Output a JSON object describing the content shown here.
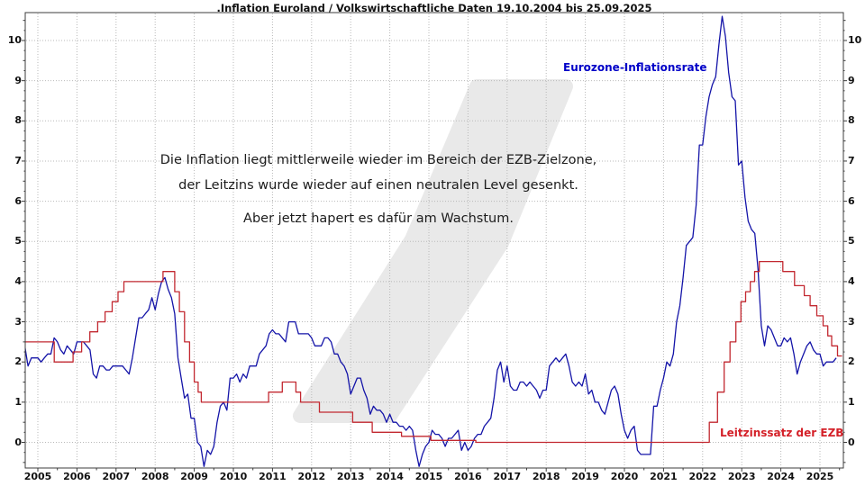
{
  "title": ".Inflation Euroland / Volkswirtschaftliche Daten 19.10.2004 bis 25.09.2025",
  "annotation": {
    "line1": "Die Inflation liegt mittlerweile wieder im Bereich der EZB-Zielzone,",
    "line2": "der Leitzins wurde wieder auf einen neutralen Level gesenkt.",
    "line3": "Aber jetzt hapert es dafür am Wachstum."
  },
  "legend": {
    "inflation": "Eurozone-Inflationsrate",
    "leitzins": "Leitzinssatz der EZB"
  },
  "colors": {
    "inflation_line": "#1414a8",
    "leitzins_line": "#c22830",
    "inflation_label": "#0000c8",
    "leitzins_label": "#d42028",
    "grid": "#b9b9b9",
    "axis": "#3c3c3c",
    "watermark": "#e9e9e9",
    "text": "#1c1c1c"
  },
  "chart_data": {
    "type": "line",
    "title": ".Inflation Euroland / Volkswirtschaftliche Daten 19.10.2004 bis 25.09.2025",
    "xlabel": "",
    "ylabel": "",
    "grid": "dotted",
    "legend_position": "inline-annotations",
    "x_tick_labels": [
      "2005",
      "2006",
      "2007",
      "2008",
      "2009",
      "2010",
      "2011",
      "2012",
      "2013",
      "2014",
      "2015",
      "2016",
      "2017",
      "2018",
      "2019",
      "2020",
      "2021",
      "2022",
      "2023",
      "2024",
      "2025"
    ],
    "y_tick_labels": [
      "0",
      "1",
      "2",
      "3",
      "4",
      "5",
      "6",
      "7",
      "8",
      "9",
      "10"
    ],
    "y_ticks": [
      0,
      1,
      2,
      3,
      4,
      5,
      6,
      7,
      8,
      9,
      10
    ],
    "ylim": [
      -0.64,
      10.69
    ],
    "xlim_years": [
      2004.68,
      2025.75
    ],
    "series": [
      {
        "name": "Eurozone-Inflationsrate",
        "color": "#1414a8",
        "unit": "percent",
        "sampling": "monthly",
        "monthly_start_year": 2004.5,
        "values": [
          2.4,
          2.2,
          2.4,
          1.9,
          2.1,
          2.1,
          2.1,
          2.0,
          2.1,
          2.2,
          2.2,
          2.6,
          2.5,
          2.3,
          2.2,
          2.4,
          2.3,
          2.2,
          2.5,
          2.5,
          2.5,
          2.4,
          2.3,
          1.7,
          1.6,
          1.9,
          1.9,
          1.8,
          1.8,
          1.9,
          1.9,
          1.9,
          1.9,
          1.8,
          1.7,
          2.1,
          2.6,
          3.1,
          3.1,
          3.2,
          3.3,
          3.6,
          3.3,
          3.7,
          4.0,
          4.1,
          3.8,
          3.6,
          3.2,
          2.1,
          1.6,
          1.1,
          1.2,
          0.6,
          0.6,
          0.0,
          -0.1,
          -0.6,
          -0.2,
          -0.3,
          -0.1,
          0.5,
          0.9,
          1.0,
          0.8,
          1.6,
          1.6,
          1.7,
          1.5,
          1.7,
          1.6,
          1.9,
          1.9,
          1.9,
          2.2,
          2.3,
          2.4,
          2.7,
          2.8,
          2.7,
          2.7,
          2.6,
          2.5,
          3.0,
          3.0,
          3.0,
          2.7,
          2.7,
          2.7,
          2.7,
          2.6,
          2.4,
          2.4,
          2.4,
          2.6,
          2.6,
          2.5,
          2.2,
          2.2,
          2.0,
          1.9,
          1.7,
          1.2,
          1.4,
          1.6,
          1.6,
          1.3,
          1.1,
          0.7,
          0.9,
          0.8,
          0.8,
          0.7,
          0.5,
          0.7,
          0.5,
          0.5,
          0.4,
          0.4,
          0.3,
          0.4,
          0.3,
          -0.2,
          -0.6,
          -0.3,
          -0.1,
          0.0,
          0.3,
          0.2,
          0.2,
          0.1,
          -0.1,
          0.1,
          0.1,
          0.2,
          0.3,
          -0.2,
          0.0,
          -0.2,
          -0.1,
          0.1,
          0.2,
          0.2,
          0.4,
          0.5,
          0.6,
          1.1,
          1.8,
          2.0,
          1.5,
          1.9,
          1.4,
          1.3,
          1.3,
          1.5,
          1.5,
          1.4,
          1.5,
          1.4,
          1.3,
          1.1,
          1.3,
          1.3,
          1.9,
          2.0,
          2.1,
          2.0,
          2.1,
          2.2,
          1.9,
          1.5,
          1.4,
          1.5,
          1.4,
          1.7,
          1.2,
          1.3,
          1.0,
          1.0,
          0.8,
          0.7,
          1.0,
          1.3,
          1.4,
          1.2,
          0.7,
          0.3,
          0.1,
          0.3,
          0.4,
          -0.2,
          -0.3,
          -0.3,
          -0.3,
          -0.3,
          0.9,
          0.9,
          1.3,
          1.6,
          2.0,
          1.9,
          2.2,
          3.0,
          3.4,
          4.1,
          4.9,
          5.0,
          5.1,
          5.9,
          7.4,
          7.4,
          8.1,
          8.6,
          8.9,
          9.1,
          9.9,
          10.6,
          10.1,
          9.2,
          8.6,
          8.5,
          6.9,
          7.0,
          6.1,
          5.5,
          5.3,
          5.2,
          4.3,
          2.9,
          2.4,
          2.9,
          2.8,
          2.6,
          2.4,
          2.4,
          2.6,
          2.5,
          2.6,
          2.2,
          1.7,
          2.0,
          2.2,
          2.4,
          2.5,
          2.3,
          2.2,
          2.2,
          1.9,
          2.0,
          2.0,
          2.0,
          2.1
        ]
      },
      {
        "name": "Leitzinssatz der EZB",
        "color": "#c22830",
        "unit": "percent",
        "style": "step-after",
        "points": [
          [
            2004.6,
            2.5
          ],
          [
            2005.42,
            2.0
          ],
          [
            2005.9,
            2.25
          ],
          [
            2006.12,
            2.5
          ],
          [
            2006.33,
            2.75
          ],
          [
            2006.53,
            3.0
          ],
          [
            2006.72,
            3.25
          ],
          [
            2006.9,
            3.5
          ],
          [
            2007.05,
            3.75
          ],
          [
            2007.2,
            4.0
          ],
          [
            2008.2,
            4.25
          ],
          [
            2008.5,
            3.75
          ],
          [
            2008.62,
            3.25
          ],
          [
            2008.75,
            2.5
          ],
          [
            2008.88,
            2.0
          ],
          [
            2009.0,
            1.5
          ],
          [
            2009.1,
            1.25
          ],
          [
            2009.18,
            1.0
          ],
          [
            2010.9,
            1.25
          ],
          [
            2011.25,
            1.5
          ],
          [
            2011.6,
            1.25
          ],
          [
            2011.72,
            1.0
          ],
          [
            2012.2,
            0.75
          ],
          [
            2013.05,
            0.5
          ],
          [
            2013.55,
            0.25
          ],
          [
            2014.3,
            0.15
          ],
          [
            2015.05,
            0.05
          ],
          [
            2016.2,
            0.0
          ],
          [
            2022.17,
            0.5
          ],
          [
            2022.38,
            1.25
          ],
          [
            2022.55,
            2.0
          ],
          [
            2022.7,
            2.5
          ],
          [
            2022.85,
            3.0
          ],
          [
            2022.98,
            3.5
          ],
          [
            2023.1,
            3.75
          ],
          [
            2023.22,
            4.0
          ],
          [
            2023.33,
            4.25
          ],
          [
            2023.45,
            4.5
          ],
          [
            2024.05,
            4.25
          ],
          [
            2024.35,
            3.9
          ],
          [
            2024.6,
            3.65
          ],
          [
            2024.75,
            3.4
          ],
          [
            2024.92,
            3.15
          ],
          [
            2025.08,
            2.9
          ],
          [
            2025.2,
            2.65
          ],
          [
            2025.3,
            2.4
          ],
          [
            2025.45,
            2.15
          ]
        ],
        "end_year": 2025.62
      }
    ]
  }
}
